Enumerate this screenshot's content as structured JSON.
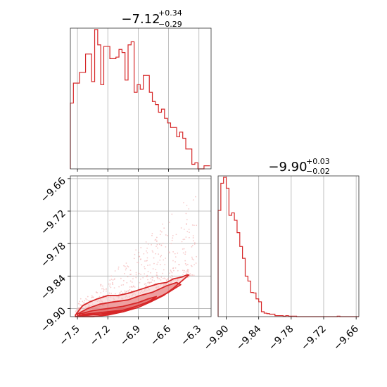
{
  "colors": {
    "series": "#d62728",
    "scatter": "#f4b6b6",
    "fill_light": "#f7c9c9"
  },
  "chart_data": [
    {
      "type": "histogram",
      "panel": "top-left",
      "title_main": "−7.12",
      "title_sup": "+0.34",
      "title_sub": "−0.29",
      "xlim": [
        -7.57,
        -6.18
      ],
      "bin_edges": [
        -7.57,
        -7.54,
        -7.51,
        -7.48,
        -7.45,
        -7.42,
        -7.39,
        -7.36,
        -7.33,
        -7.3,
        -7.27,
        -7.24,
        -7.21,
        -7.18,
        -7.15,
        -7.12,
        -7.09,
        -7.06,
        -7.03,
        -7.0,
        -6.97,
        -6.94,
        -6.91,
        -6.88,
        -6.85,
        -6.82,
        -6.79,
        -6.76,
        -6.73,
        -6.7,
        -6.67,
        -6.64,
        -6.61,
        -6.58,
        -6.55,
        -6.52,
        -6.49,
        -6.46,
        -6.43,
        -6.4,
        -6.37,
        -6.34,
        -6.31,
        -6.28,
        -6.25,
        -6.22,
        -6.19
      ],
      "counts": [
        43,
        56,
        56,
        63,
        63,
        75,
        75,
        57,
        91,
        81,
        55,
        80,
        80,
        72,
        72,
        73,
        78,
        76,
        58,
        81,
        83,
        50,
        55,
        52,
        61,
        61,
        50,
        44,
        42,
        37,
        39,
        33,
        30,
        27,
        27,
        21,
        24,
        20,
        13,
        13,
        3,
        4,
        0,
        0,
        2,
        2
      ],
      "xticks": [
        -7.5,
        -7.2,
        -6.9,
        -6.6,
        -6.3
      ]
    },
    {
      "type": "scatter",
      "panel": "bottom-left",
      "xlim": [
        -7.57,
        -6.18
      ],
      "ylim": [
        -9.915,
        -9.655
      ],
      "xticks": [
        -7.5,
        -7.2,
        -6.9,
        -6.6,
        -6.3
      ],
      "yticks": [
        -9.66,
        -9.72,
        -9.78,
        -9.84,
        -9.9
      ],
      "xtick_labels": [
        "−7.5",
        "−7.2",
        "−6.9",
        "−6.6",
        "−6.3"
      ],
      "ytick_labels": [
        "−9.66",
        "−9.72",
        "−9.78",
        "−9.84",
        "−9.90"
      ],
      "contour_levels": [
        [
          [
            -7.52,
            -9.912
          ],
          [
            -7.45,
            -9.895
          ],
          [
            -7.38,
            -9.888
          ],
          [
            -7.3,
            -9.882
          ],
          [
            -7.2,
            -9.876
          ],
          [
            -7.1,
            -9.876
          ],
          [
            -7.0,
            -9.872
          ],
          [
            -6.9,
            -9.866
          ],
          [
            -6.8,
            -9.86
          ],
          [
            -6.7,
            -9.854
          ],
          [
            -6.62,
            -9.852
          ],
          [
            -6.55,
            -9.845
          ],
          [
            -6.47,
            -9.842
          ],
          [
            -6.42,
            -9.838
          ],
          [
            -6.4,
            -9.838
          ],
          [
            -6.45,
            -9.846
          ],
          [
            -6.55,
            -9.862
          ],
          [
            -6.65,
            -9.876
          ],
          [
            -6.78,
            -9.888
          ],
          [
            -6.9,
            -9.898
          ],
          [
            -7.05,
            -9.906
          ],
          [
            -7.2,
            -9.912
          ],
          [
            -7.35,
            -9.915
          ],
          [
            -7.52,
            -9.915
          ]
        ],
        [
          [
            -7.5,
            -9.91
          ],
          [
            -7.4,
            -9.9
          ],
          [
            -7.28,
            -9.892
          ],
          [
            -7.15,
            -9.888
          ],
          [
            -7.0,
            -9.884
          ],
          [
            -6.88,
            -9.876
          ],
          [
            -6.76,
            -9.87
          ],
          [
            -6.62,
            -9.858
          ],
          [
            -6.52,
            -9.852
          ],
          [
            -6.48,
            -9.856
          ],
          [
            -6.6,
            -9.87
          ],
          [
            -6.75,
            -9.884
          ],
          [
            -6.9,
            -9.895
          ],
          [
            -7.05,
            -9.903
          ],
          [
            -7.25,
            -9.91
          ],
          [
            -7.5,
            -9.913
          ]
        ],
        [
          [
            -7.48,
            -9.91
          ],
          [
            -7.35,
            -9.904
          ],
          [
            -7.2,
            -9.9
          ],
          [
            -7.05,
            -9.896
          ],
          [
            -6.9,
            -9.889
          ],
          [
            -6.8,
            -9.882
          ],
          [
            -6.72,
            -9.878
          ],
          [
            -6.8,
            -9.888
          ],
          [
            -6.95,
            -9.898
          ],
          [
            -7.1,
            -9.906
          ],
          [
            -7.3,
            -9.911
          ],
          [
            -7.48,
            -9.913
          ]
        ],
        [
          [
            -7.45,
            -9.911
          ],
          [
            -7.3,
            -9.908
          ],
          [
            -7.15,
            -9.905
          ],
          [
            -7.0,
            -9.902
          ],
          [
            -6.95,
            -9.9
          ],
          [
            -7.05,
            -9.906
          ],
          [
            -7.2,
            -9.91
          ],
          [
            -7.45,
            -9.913
          ]
        ]
      ]
    },
    {
      "type": "histogram",
      "panel": "bottom-right",
      "title_main": "−9.90",
      "title_sup": "+0.03",
      "title_sub": "−0.02",
      "xlim": [
        -9.915,
        -9.655
      ],
      "bin_edges": [
        -9.915,
        -9.91,
        -9.905,
        -9.9,
        -9.895,
        -9.89,
        -9.885,
        -9.88,
        -9.875,
        -9.87,
        -9.865,
        -9.86,
        -9.855,
        -9.85,
        -9.845,
        -9.84,
        -9.835,
        -9.83,
        -9.825,
        -9.82,
        -9.815,
        -9.81,
        -9.805,
        -9.8,
        -9.795,
        -9.79,
        -9.785,
        -9.78,
        -9.775,
        -9.77,
        -9.765,
        -9.76,
        -9.755,
        -9.75,
        -9.745,
        -9.74,
        -9.735,
        -9.73,
        -9.725,
        -9.72,
        -9.715,
        -9.71,
        -9.705,
        -9.7,
        -9.695,
        -9.69,
        -9.685,
        -9.68,
        -9.675,
        -9.67,
        -9.665,
        -9.66,
        -9.655
      ],
      "counts": [
        215,
        270,
        282,
        260,
        205,
        210,
        195,
        170,
        142,
        118,
        82,
        72,
        49,
        48,
        36,
        30,
        10,
        7,
        6,
        5,
        5,
        2,
        2,
        2,
        1,
        2,
        1,
        1,
        1,
        0,
        0,
        0,
        0,
        0,
        0,
        0,
        0,
        0,
        0,
        0,
        0,
        0,
        0,
        0,
        1,
        0,
        0,
        0,
        0,
        0,
        0,
        0
      ],
      "xticks": [
        -9.9,
        -9.84,
        -9.78,
        -9.72,
        -9.66
      ],
      "xtick_labels": [
        "−9.90",
        "−9.84",
        "−9.78",
        "−9.72",
        "−9.66"
      ]
    }
  ]
}
